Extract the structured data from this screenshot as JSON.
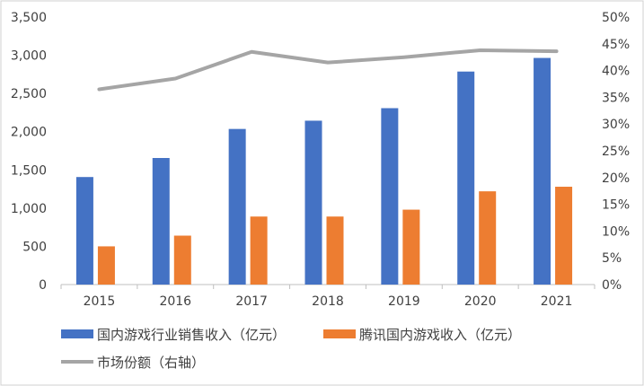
{
  "chart_data": {
    "type": "bar",
    "categories": [
      "2015",
      "2016",
      "2017",
      "2018",
      "2019",
      "2020",
      "2021"
    ],
    "series": [
      {
        "name": "国内游戏行业销售收入（亿元）",
        "type": "bar",
        "axis": "left",
        "color": "#4472c4",
        "values": [
          1407,
          1656,
          2036,
          2144,
          2308,
          2787,
          2965
        ]
      },
      {
        "name": "腾讯国内游戏收入（亿元）",
        "type": "bar",
        "axis": "left",
        "color": "#ed7d31",
        "values": [
          500,
          640,
          890,
          890,
          980,
          1220,
          1280
        ]
      },
      {
        "name": "市场份额（右轴）",
        "type": "line",
        "axis": "right",
        "color": "#a5a5a5",
        "values": [
          36.5,
          38.5,
          43.5,
          41.5,
          42.5,
          43.8,
          43.6
        ]
      }
    ],
    "left_axis": {
      "ylim": [
        0,
        3500
      ],
      "ticks": [
        0,
        500,
        1000,
        1500,
        2000,
        2500,
        3000,
        3500
      ],
      "tick_labels": [
        "0",
        "500",
        "1,000",
        "1,500",
        "2,000",
        "2,500",
        "3,000",
        "3,500"
      ]
    },
    "right_axis": {
      "ylim": [
        0,
        50
      ],
      "ticks": [
        0,
        5,
        10,
        15,
        20,
        25,
        30,
        35,
        40,
        45,
        50
      ],
      "tick_labels": [
        "0%",
        "5%",
        "10%",
        "15%",
        "20%",
        "25%",
        "30%",
        "35%",
        "40%",
        "45%",
        "50%"
      ]
    },
    "grid": false,
    "legend_position": "bottom-left"
  }
}
